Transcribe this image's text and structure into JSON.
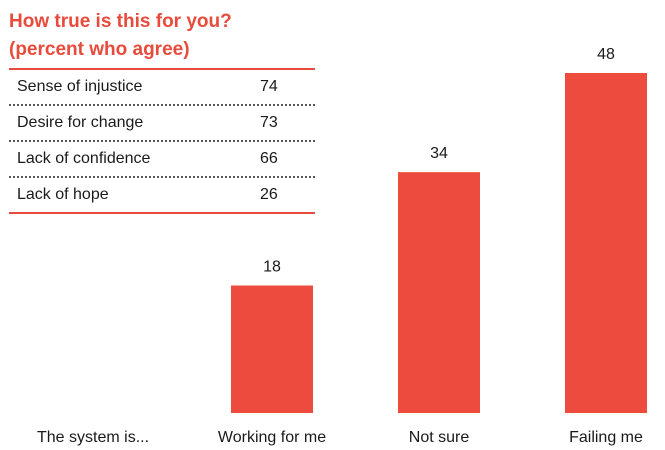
{
  "colors": {
    "accent": "#e84b3c",
    "bar": "#ed4b3d",
    "text": "#1a1a1a"
  },
  "sidebar_table": {
    "title_line1": "How true is this for you?",
    "title_line2": "(percent who agree)",
    "rows": [
      {
        "label": "Sense of injustice",
        "value": "74"
      },
      {
        "label": "Desire for change",
        "value": "73"
      },
      {
        "label": "Lack of confidence",
        "value": "66"
      },
      {
        "label": "Lack of hope",
        "value": "26"
      }
    ]
  },
  "chart_data": {
    "type": "bar",
    "title": "",
    "category_axis_label": "The system is...",
    "categories": [
      "Working for me",
      "Not sure",
      "Failing me"
    ],
    "values": [
      18,
      34,
      48
    ],
    "ylim": [
      0,
      48
    ],
    "grid": false,
    "data_labels": true
  }
}
